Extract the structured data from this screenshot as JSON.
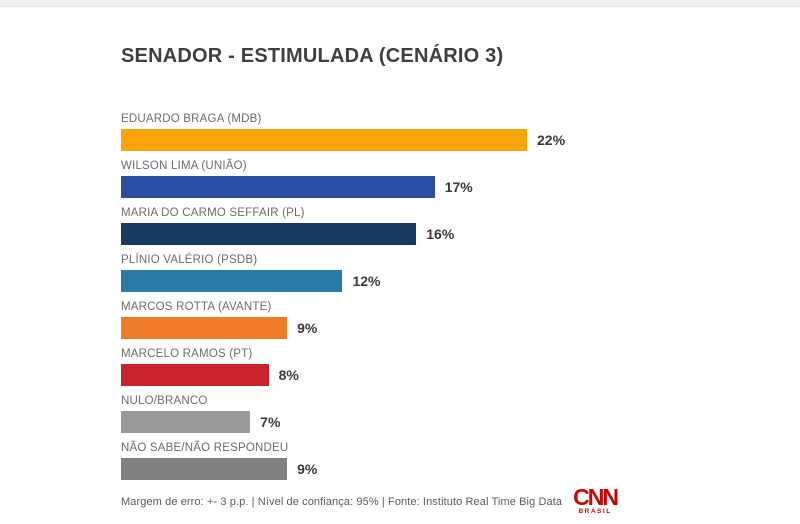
{
  "header": {
    "title": "SENADOR - ESTIMULADA (CENÁRIO 3)"
  },
  "chart_data": {
    "type": "bar",
    "orientation": "horizontal",
    "title": "SENADOR - ESTIMULADA (CENÁRIO 3)",
    "value_suffix": "%",
    "xlim": [
      0,
      22
    ],
    "grid": false,
    "legend": false,
    "categories": [
      "EDUARDO BRAGA (MDB)",
      "WILSON LIMA (UNIÃO)",
      "MARIA DO CARMO SEFFAIR (PL)",
      "PLÍNIO VALÉRIO (PSDB)",
      "MARCOS ROTTA (AVANTE)",
      "MARCELO RAMOS (PT)",
      "NULO/BRANCO",
      "NÃO SABE/NÃO RESPONDEU"
    ],
    "values": [
      22,
      17,
      16,
      12,
      9,
      8,
      7,
      9
    ],
    "value_labels": [
      "22%",
      "17%",
      "16%",
      "12%",
      "9%",
      "8%",
      "7%",
      "9%"
    ],
    "bar_colors": [
      "#FBA408",
      "#2B4DA4",
      "#173A5E",
      "#2A79A6",
      "#EE7C2B",
      "#C8232C",
      "#9A9A9A",
      "#818181"
    ]
  },
  "footer": {
    "note": "Margem de erro: +- 3 p.p. | Nível de confiança: 95% | Fonte: Instituto Real Time Big Data",
    "logo": {
      "brand": "CNN",
      "region": "BRASIL",
      "color": "#cc0000"
    }
  }
}
